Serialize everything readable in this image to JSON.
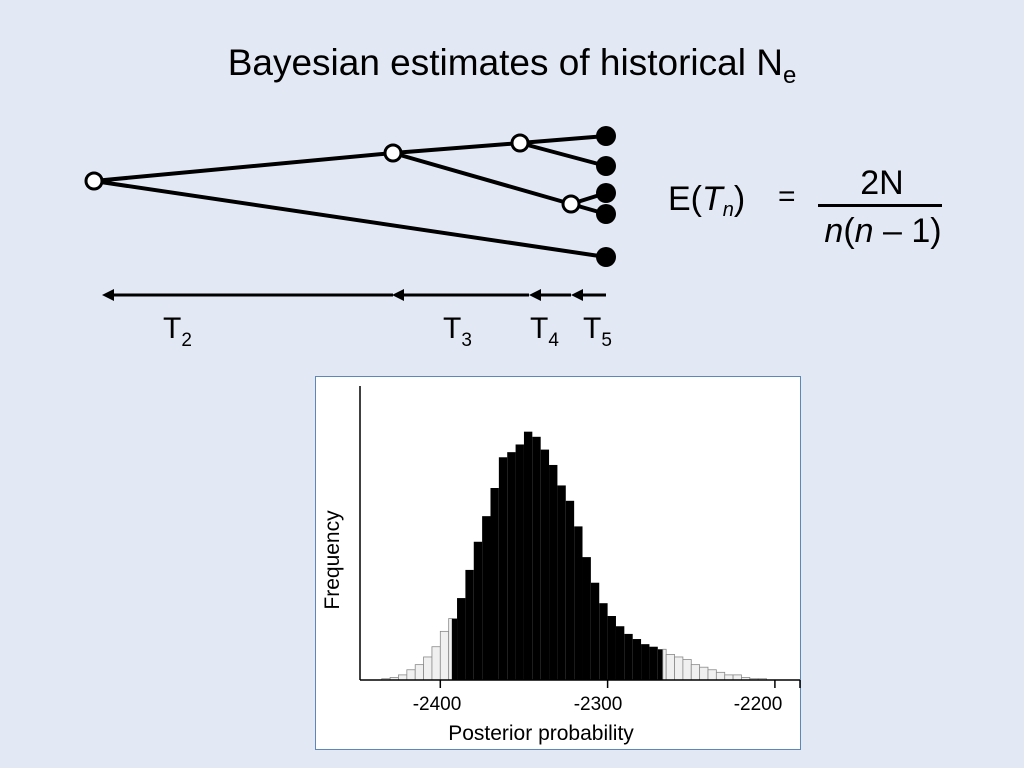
{
  "title": {
    "main": "Bayesian estimates of historical N",
    "subscript": "e"
  },
  "coalescent_intervals": [
    {
      "letter": "T",
      "index": "2"
    },
    {
      "letter": "T",
      "index": "3"
    },
    {
      "letter": "T",
      "index": "4"
    },
    {
      "letter": "T",
      "index": "5"
    }
  ],
  "formula": {
    "lhs_prefix": "E(",
    "lhs_var": "T",
    "lhs_sub": "n",
    "lhs_suffix": ")",
    "equals": "=",
    "numerator": "2N",
    "den_var1": "n",
    "den_open": "(",
    "den_var2": "n",
    "den_rest": " – 1)"
  },
  "colors": {
    "background": "#e3e9f4",
    "panel_border": "#5d87b8",
    "hpd_fill": "#000000",
    "tail_fill": "#f0f0f0"
  },
  "chart_data": {
    "type": "bar",
    "title": "",
    "xlabel": "Posterior probability",
    "ylabel": "Frequency",
    "xlim": [
      -2448,
      -2185
    ],
    "ylim": [
      0,
      100
    ],
    "x_ticks": [
      -2400,
      -2300,
      -2200
    ],
    "x_tick_labels": [
      "-2400",
      "-2300",
      "-2200"
    ],
    "bin_width": 5,
    "bin_starts": [
      -2435,
      -2430,
      -2425,
      -2420,
      -2415,
      -2410,
      -2405,
      -2400,
      -2395,
      -2390,
      -2385,
      -2380,
      -2375,
      -2370,
      -2365,
      -2360,
      -2355,
      -2350,
      -2345,
      -2340,
      -2335,
      -2330,
      -2325,
      -2320,
      -2315,
      -2310,
      -2305,
      -2300,
      -2295,
      -2290,
      -2285,
      -2280,
      -2275,
      -2270,
      -2265,
      -2260,
      -2255,
      -2250,
      -2245,
      -2240,
      -2235,
      -2230,
      -2225,
      -2220,
      -2215,
      -2210
    ],
    "frequencies": [
      0.5,
      1,
      2,
      4,
      6,
      9,
      13,
      19,
      24,
      32,
      43,
      54,
      64,
      75,
      87,
      89,
      92,
      97,
      95,
      90,
      84,
      76,
      70,
      60,
      48,
      38,
      30,
      25,
      21,
      18,
      16,
      14,
      13,
      12,
      10,
      9,
      8,
      6,
      5,
      4,
      3,
      2,
      2,
      1,
      0.5,
      0.5
    ],
    "hpd_interval": [
      -2393,
      -2267
    ],
    "series": [
      {
        "fill": "#000000",
        "values_within_hpd": true
      },
      {
        "fill": "#f0f0f0",
        "values_within_hpd": false
      }
    ]
  }
}
